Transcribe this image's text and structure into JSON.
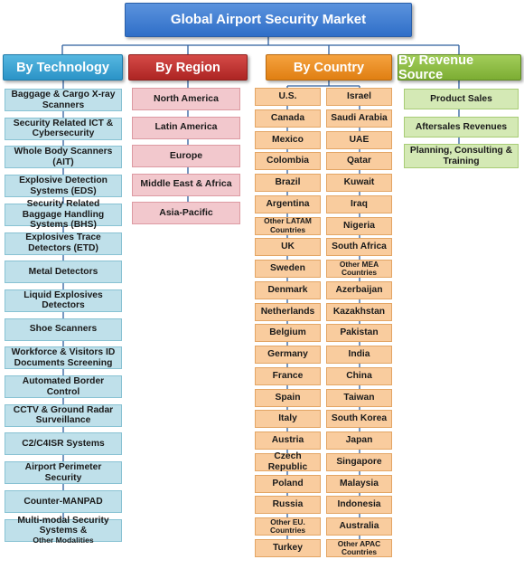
{
  "title": "Global Airport Security Market",
  "colors": {
    "technology": "#bfe0ea",
    "region": "#f2c8cd",
    "country": "#f9cc9e",
    "revenue": "#d4e9b5",
    "connector": "#2e5f9e"
  },
  "categories": {
    "technology": {
      "label": "By Technology",
      "items": [
        "Baggage & Cargo X-ray Scanners",
        "Security Related ICT & Cybersecurity",
        "Whole Body Scanners (AIT)",
        "Explosive Detection Systems (EDS)",
        "Security Related Baggage Handling Systems (BHS)",
        "Explosives Trace Detectors (ETD)",
        "Metal Detectors",
        "Liquid Explosives Detectors",
        "Shoe Scanners",
        "Workforce & Visitors ID Documents Screening",
        "Automated Border Control",
        "CCTV & Ground Radar Surveillance",
        "C2/C4ISR Systems",
        "Airport Perimeter Security",
        "Counter-MANPAD"
      ],
      "last_item_main": "Multi-modal Security Systems &",
      "last_item_small": "Other Modalities"
    },
    "region": {
      "label": "By Region",
      "items": [
        "North America",
        "Latin America",
        "Europe",
        "Middle East & Africa",
        "Asia-Pacific"
      ]
    },
    "country": {
      "label": "By Country",
      "col1": [
        "U.S.",
        "Canada",
        "Mexico",
        "Colombia",
        "Brazil",
        "Argentina",
        "Other LATAM Countries",
        "UK",
        "Sweden",
        "Denmark",
        "Netherlands",
        "Belgium",
        "Germany",
        "France",
        "Spain",
        "Italy",
        "Austria",
        "Czech Republic",
        "Poland",
        "Russia",
        "Other EU. Countries",
        "Turkey"
      ],
      "col2": [
        "Israel",
        "Saudi Arabia",
        "UAE",
        "Qatar",
        "Kuwait",
        "Iraq",
        "Nigeria",
        "South Africa",
        "Other MEA Countries",
        "Azerbaijan",
        "Kazakhstan",
        "Pakistan",
        "India",
        "China",
        "Taiwan",
        "South Korea",
        "Japan",
        "Singapore",
        "Malaysia",
        "Indonesia",
        "Australia",
        "Other APAC Countries"
      ]
    },
    "revenue": {
      "label": "By Revenue Source",
      "items": [
        "Product Sales",
        "Aftersales Revenues",
        "Planning, Consulting & Training"
      ]
    }
  }
}
